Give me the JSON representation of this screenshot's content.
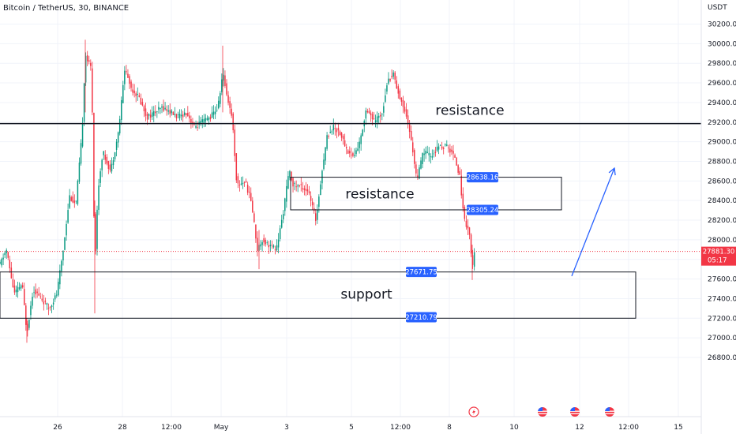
{
  "header": {
    "symbol": "Bitcoin / TetherUS, 30, BINANCE",
    "currency": "USDT"
  },
  "colors": {
    "up": "#089981",
    "down": "#f23645",
    "level_line": "#131722",
    "badge": "#2962ff",
    "price_badge": "#f23645",
    "arrow": "#2962ff",
    "grid": "#f0f3fa"
  },
  "icons": [
    "lightning-icon",
    "us-flag-icon",
    "us-flag-icon",
    "us-flag-icon"
  ],
  "chart_data": {
    "type": "candlestick",
    "ylim": [
      26700,
      30300
    ],
    "y_ticks": [
      26800,
      27000,
      27200,
      27400,
      27600,
      27800,
      28000,
      28200,
      28400,
      28600,
      28800,
      29000,
      29200,
      29400,
      29600,
      29800,
      30000,
      30200
    ],
    "y_tick_labels": [
      "26800.00",
      "27000.00",
      "27200.00",
      "27400.00",
      "27600.00",
      "27800.00",
      "28000.00",
      "28200.00",
      "28400.00",
      "28600.00",
      "28800.00",
      "29000.00",
      "29200.00",
      "29400.00",
      "29600.00",
      "29800.00",
      "30000.00",
      "30200.00"
    ],
    "x_ticks": [
      {
        "label": "26",
        "slot": 73
      },
      {
        "label": "28",
        "slot": 155
      },
      {
        "label": "12:00",
        "slot": 217
      },
      {
        "label": "May",
        "slot": 280
      },
      {
        "label": "3",
        "slot": 363
      },
      {
        "label": "5",
        "slot": 445
      },
      {
        "label": "12:00",
        "slot": 507
      },
      {
        "label": "8",
        "slot": 569
      },
      {
        "label": "10",
        "slot": 651
      },
      {
        "label": "12",
        "slot": 734
      },
      {
        "label": "12:00",
        "slot": 796
      },
      {
        "label": "15",
        "slot": 859
      }
    ],
    "current_price": {
      "value": 27881.3,
      "label": "27881.30",
      "countdown": "05:17"
    },
    "levels": [
      {
        "type": "horizontal_line",
        "value": 29185,
        "label": "resistance"
      }
    ],
    "zones": [
      {
        "name": "resistance",
        "label": "resistance",
        "top": 28638.16,
        "bottom": 28305.24,
        "top_label": "28638.16",
        "bottom_label": "28305.24"
      },
      {
        "name": "support",
        "label": "support",
        "top": 27671.75,
        "bottom": 27210.79,
        "top_label": "27671.75",
        "bottom_label": "27210.79"
      }
    ],
    "path": [
      [
        0,
        27750
      ],
      [
        8,
        27900
      ],
      [
        18,
        27450
      ],
      [
        28,
        27550
      ],
      [
        34,
        27050
      ],
      [
        42,
        27500
      ],
      [
        52,
        27400
      ],
      [
        62,
        27300
      ],
      [
        72,
        27450
      ],
      [
        80,
        27900
      ],
      [
        88,
        28450
      ],
      [
        96,
        28350
      ],
      [
        104,
        29100
      ],
      [
        108,
        29900
      ],
      [
        112,
        29800
      ],
      [
        116,
        29750
      ],
      [
        120,
        27700
      ],
      [
        124,
        28500
      ],
      [
        130,
        28900
      ],
      [
        140,
        28700
      ],
      [
        150,
        29100
      ],
      [
        158,
        29750
      ],
      [
        166,
        29550
      ],
      [
        176,
        29450
      ],
      [
        186,
        29250
      ],
      [
        196,
        29300
      ],
      [
        206,
        29350
      ],
      [
        216,
        29300
      ],
      [
        226,
        29250
      ],
      [
        236,
        29300
      ],
      [
        246,
        29150
      ],
      [
        256,
        29200
      ],
      [
        266,
        29250
      ],
      [
        276,
        29350
      ],
      [
        282,
        29700
      ],
      [
        288,
        29450
      ],
      [
        294,
        29250
      ],
      [
        300,
        28550
      ],
      [
        310,
        28600
      ],
      [
        318,
        28400
      ],
      [
        326,
        27900
      ],
      [
        332,
        28000
      ],
      [
        340,
        27950
      ],
      [
        350,
        27900
      ],
      [
        358,
        28250
      ],
      [
        366,
        28700
      ],
      [
        372,
        28550
      ],
      [
        380,
        28550
      ],
      [
        390,
        28500
      ],
      [
        400,
        28200
      ],
      [
        406,
        28600
      ],
      [
        414,
        29050
      ],
      [
        422,
        29150
      ],
      [
        430,
        29100
      ],
      [
        440,
        28900
      ],
      [
        448,
        28850
      ],
      [
        456,
        29000
      ],
      [
        464,
        29350
      ],
      [
        474,
        29200
      ],
      [
        484,
        29300
      ],
      [
        490,
        29600
      ],
      [
        498,
        29700
      ],
      [
        506,
        29450
      ],
      [
        514,
        29300
      ],
      [
        522,
        28950
      ],
      [
        528,
        28600
      ],
      [
        536,
        28900
      ],
      [
        546,
        28850
      ],
      [
        556,
        28950
      ],
      [
        566,
        28950
      ],
      [
        576,
        28850
      ],
      [
        582,
        28650
      ],
      [
        588,
        28200
      ],
      [
        594,
        28100
      ],
      [
        598,
        27700
      ],
      [
        601,
        27880
      ]
    ],
    "arrow": {
      "from": [
        724,
        27630
      ],
      "to": [
        778,
        28730
      ]
    }
  }
}
